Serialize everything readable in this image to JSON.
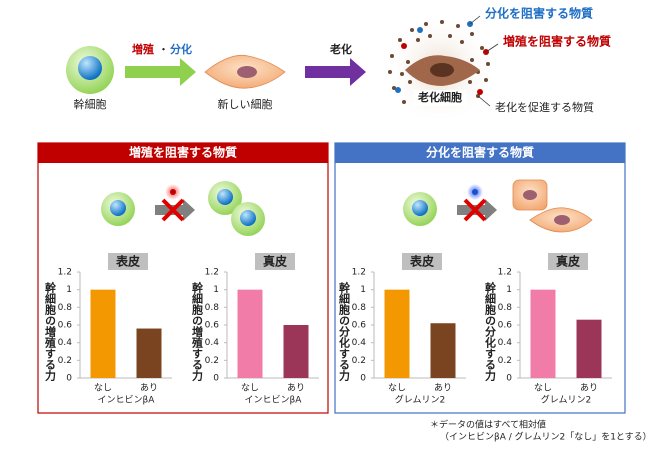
{
  "diagram": {
    "stem_cell": "幹細胞",
    "growth": "増殖",
    "dot": "・",
    "differentiation": "分化",
    "new_cell": "新しい細胞",
    "aging": "老化",
    "aged_cell": "老化細胞",
    "diff_inhibitor": "分化を阻害する物質",
    "growth_inhibitor": "増殖を阻害する物質",
    "aging_promoter": "老化を促進する物質",
    "left_panel": "増殖を阻害する物質",
    "right_panel": "分化を阻害する物質",
    "note1": "＊データの値はすべて相対値",
    "note2": "（インヒビンβA / グレムリン2「なし」を1とする）"
  },
  "chart_data": [
    {
      "type": "bar",
      "title": "表皮",
      "ylabel": "幹細胞の増殖する力",
      "xlabel": "インヒビンβA",
      "categories": [
        "なし",
        "あり"
      ],
      "values": [
        1,
        0.56
      ],
      "colors": [
        "#f39800",
        "#7b4420"
      ],
      "ylim": [
        0,
        1.2
      ],
      "yticks": [
        0,
        0.2,
        0.4,
        0.6,
        0.8,
        1,
        1.2
      ]
    },
    {
      "type": "bar",
      "title": "真皮",
      "ylabel": "幹細胞の増殖する力",
      "xlabel": "インヒビンβA",
      "categories": [
        "なし",
        "あり"
      ],
      "values": [
        1,
        0.6
      ],
      "colors": [
        "#f27ca8",
        "#9c3658"
      ],
      "ylim": [
        0,
        1.2
      ],
      "yticks": [
        0,
        0.2,
        0.4,
        0.6,
        0.8,
        1,
        1.2
      ]
    },
    {
      "type": "bar",
      "title": "表皮",
      "ylabel": "幹細胞の分化する力",
      "xlabel": "グレムリン2",
      "categories": [
        "なし",
        "あり"
      ],
      "values": [
        1,
        0.62
      ],
      "colors": [
        "#f39800",
        "#7b4420"
      ],
      "ylim": [
        0,
        1.2
      ],
      "yticks": [
        0,
        0.2,
        0.4,
        0.6,
        0.8,
        1,
        1.2
      ]
    },
    {
      "type": "bar",
      "title": "真皮",
      "ylabel": "幹細胞の分化する力",
      "xlabel": "グレムリン2",
      "categories": [
        "なし",
        "あり"
      ],
      "values": [
        1,
        0.66
      ],
      "colors": [
        "#f27ca8",
        "#9c3658"
      ],
      "ylim": [
        0,
        1.2
      ],
      "yticks": [
        0,
        0.2,
        0.4,
        0.6,
        0.8,
        1,
        1.2
      ]
    }
  ]
}
